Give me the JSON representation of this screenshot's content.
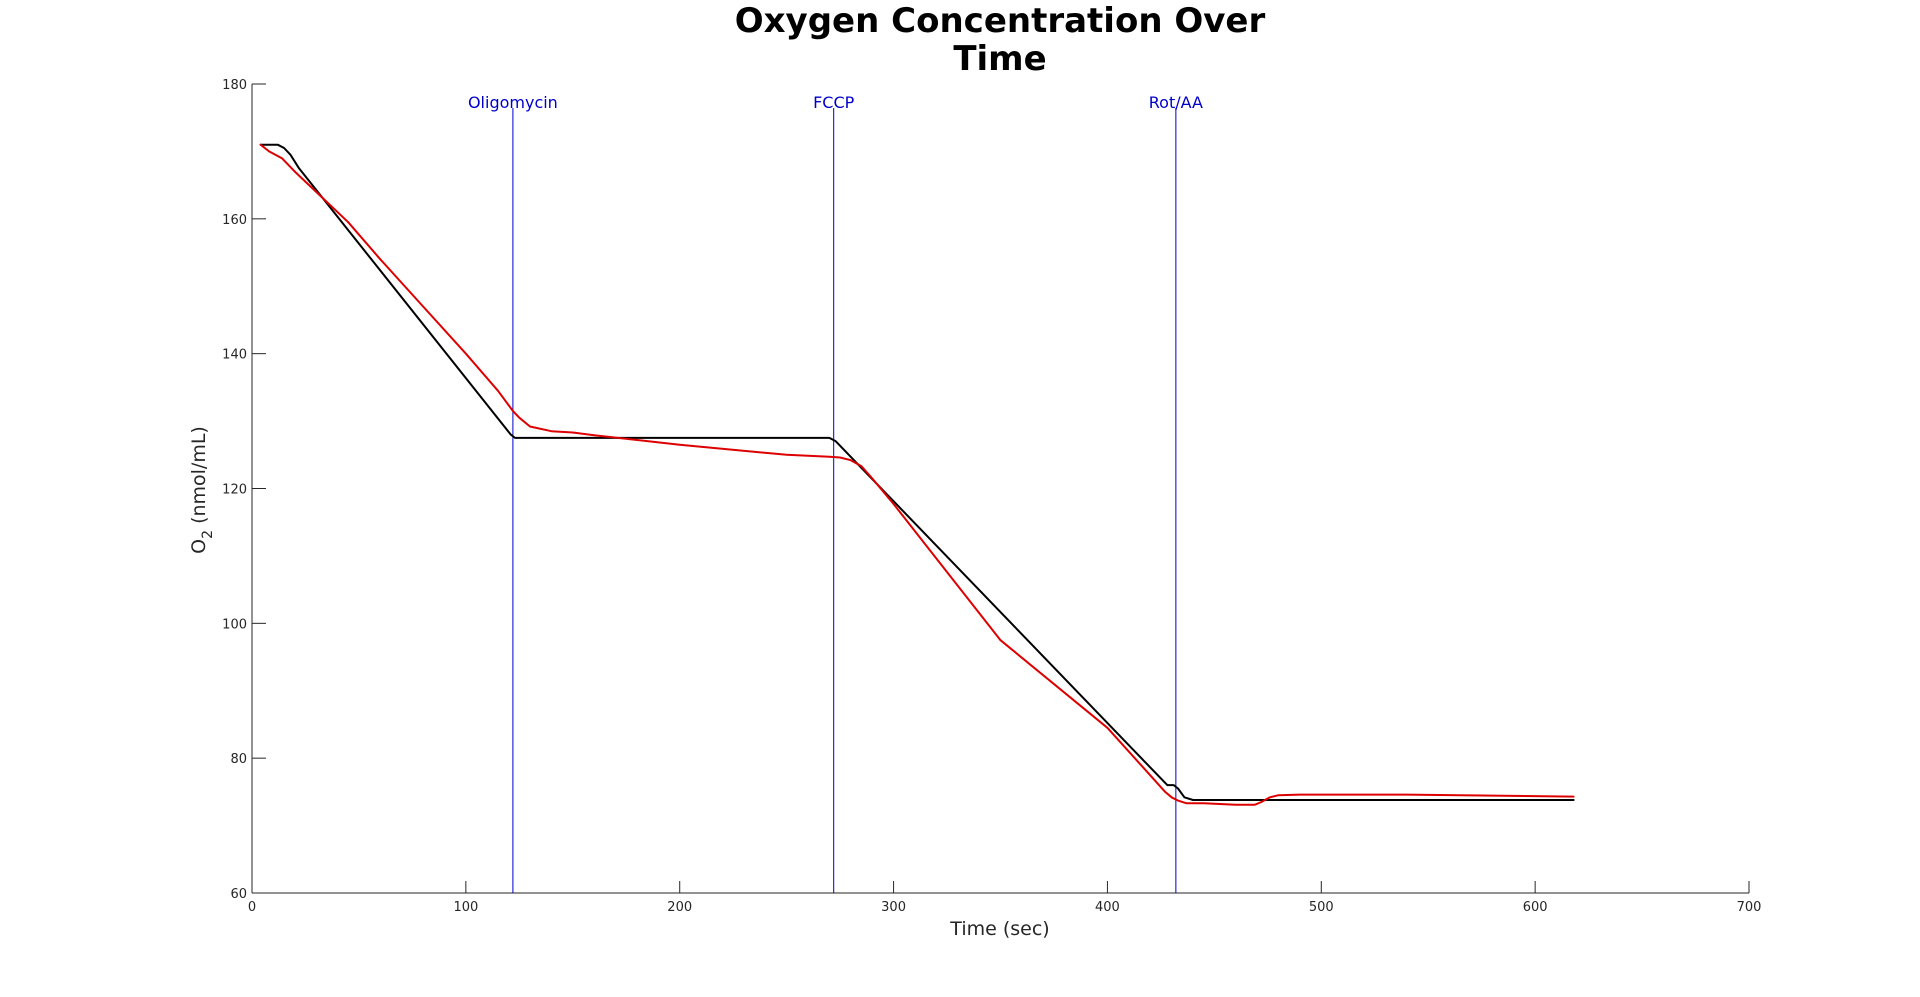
{
  "chart_data": {
    "type": "line",
    "title_lines": [
      "Oxygen Concentration Over",
      "Time"
    ],
    "xlabel": "Time (sec)",
    "ylabel_main": "O",
    "ylabel_sub": "2",
    "ylabel_rest": " (nmol/mL)",
    "xlim": [
      0,
      700
    ],
    "ylim": [
      60,
      180
    ],
    "x_ticks": [
      0,
      100,
      200,
      300,
      400,
      500,
      600,
      700
    ],
    "y_ticks": [
      60,
      80,
      100,
      120,
      140,
      160,
      180
    ],
    "grid": false,
    "legend": "none",
    "vertical_markers": [
      {
        "x": 122,
        "label": "Oligomycin",
        "color": "#0000cc"
      },
      {
        "x": 272,
        "label": "FCCP",
        "color": "#0000cc"
      },
      {
        "x": 432,
        "label": "Rot/AA",
        "color": "#0000cc"
      }
    ],
    "series": [
      {
        "color": "#000000",
        "points": [
          [
            4,
            171
          ],
          [
            12,
            171
          ],
          [
            15,
            170.5
          ],
          [
            18,
            169.5
          ],
          [
            22,
            167.5
          ],
          [
            121,
            128
          ],
          [
            123,
            127.5
          ],
          [
            270,
            127.5
          ],
          [
            273,
            127
          ],
          [
            428,
            76
          ],
          [
            431,
            76
          ],
          [
            433,
            75.5
          ],
          [
            436,
            74.2
          ],
          [
            440,
            73.8
          ],
          [
            618,
            73.8
          ]
        ]
      },
      {
        "color": "#dd0000",
        "points": [
          [
            4,
            171
          ],
          [
            8,
            170
          ],
          [
            14,
            169
          ],
          [
            20,
            167
          ],
          [
            30,
            164
          ],
          [
            45,
            159.5
          ],
          [
            60,
            154
          ],
          [
            80,
            147
          ],
          [
            100,
            140
          ],
          [
            115,
            134.5
          ],
          [
            122,
            131.5
          ],
          [
            125,
            130.5
          ],
          [
            130,
            129.2
          ],
          [
            140,
            128.5
          ],
          [
            150,
            128.3
          ],
          [
            160,
            127.9
          ],
          [
            200,
            126.5
          ],
          [
            250,
            125
          ],
          [
            270,
            124.7
          ],
          [
            275,
            124.6
          ],
          [
            280,
            124.2
          ],
          [
            285,
            123.3
          ],
          [
            290,
            121.5
          ],
          [
            300,
            117.7
          ],
          [
            350,
            97.5
          ],
          [
            400,
            84.5
          ],
          [
            427,
            75
          ],
          [
            430,
            74.2
          ],
          [
            433,
            73.7
          ],
          [
            437,
            73.3
          ],
          [
            445,
            73.3
          ],
          [
            460,
            73.1
          ],
          [
            469,
            73.1
          ],
          [
            472,
            73.5
          ],
          [
            476,
            74.2
          ],
          [
            480,
            74.5
          ],
          [
            490,
            74.6
          ],
          [
            540,
            74.6
          ],
          [
            618,
            74.3
          ]
        ]
      }
    ]
  }
}
